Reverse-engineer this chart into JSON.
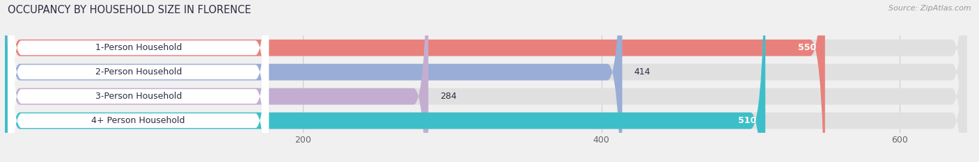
{
  "title": "OCCUPANCY BY HOUSEHOLD SIZE IN FLORENCE",
  "source": "Source: ZipAtlas.com",
  "categories": [
    "1-Person Household",
    "2-Person Household",
    "3-Person Household",
    "4+ Person Household"
  ],
  "values": [
    550,
    414,
    284,
    510
  ],
  "bar_colors": [
    "#e8817c",
    "#9aadd6",
    "#c3aed1",
    "#3dbfc9"
  ],
  "label_colors": [
    "white",
    "black",
    "black",
    "white"
  ],
  "xlim_data": [
    0,
    650
  ],
  "xticks": [
    200,
    400,
    600
  ],
  "background_color": "#f0f0f0",
  "bar_bg_color": "#e0e0e0",
  "white_label_bg": "#ffffff",
  "title_color": "#2c2c44",
  "source_color": "#999999",
  "title_fontsize": 10.5,
  "source_fontsize": 8,
  "bar_label_fontsize": 9,
  "category_fontsize": 9,
  "bar_height": 0.68,
  "figsize": [
    14.06,
    2.33
  ],
  "dpi": 100
}
